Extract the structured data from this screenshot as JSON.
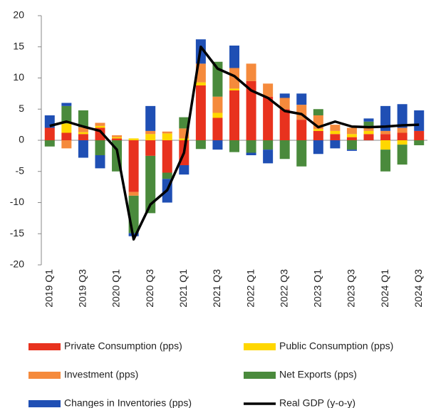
{
  "chart_data": {
    "type": "bar",
    "categories": [
      "2019 Q1",
      null,
      "2019 Q3",
      null,
      "2020 Q1",
      null,
      "2020 Q3",
      null,
      "2021 Q1",
      null,
      "2021 Q3",
      null,
      "2022 Q1",
      null,
      "2022 Q3",
      null,
      "2023 Q1",
      null,
      "2023 Q3",
      null,
      "2024 Q1",
      null,
      "2024 Q3"
    ],
    "stacked": true,
    "series": [
      {
        "name": "Private Consumption (pps)",
        "color": "#e8321e",
        "values": [
          2,
          1.2,
          1.0,
          2,
          0.3,
          -8.3,
          -2.5,
          -5.2,
          -4,
          8.8,
          3.6,
          8,
          9.5,
          7,
          5,
          3.3,
          1.5,
          1,
          0.5,
          1,
          1,
          1.2,
          1.5
        ]
      },
      {
        "name": "Public Consumption (pps)",
        "color": "#ffd700",
        "values": [
          0,
          1.5,
          0.3,
          0.3,
          0.2,
          0.3,
          1,
          1.1,
          0.3,
          0.5,
          0.8,
          0.3,
          0,
          0,
          0,
          0,
          0.3,
          0.5,
          0.5,
          0.5,
          -1.5,
          -0.7,
          0
        ]
      },
      {
        "name": "Investment (pps)",
        "color": "#f58a3c",
        "values": [
          0,
          -1.3,
          0.8,
          0.5,
          0.3,
          -0.6,
          0.5,
          0.3,
          1.6,
          3,
          2.6,
          3.3,
          2.8,
          2.1,
          1.8,
          2.4,
          2.2,
          1,
          1,
          0.5,
          0.5,
          0.8,
          0
        ]
      },
      {
        "name": "Net Exports (pps)",
        "color": "#4a8a3c",
        "values": [
          -1,
          2.8,
          2.7,
          -2.4,
          -5,
          -6,
          -9.2,
          -1,
          1.8,
          -1.4,
          5.6,
          -1.9,
          -2,
          -1.5,
          -3,
          -4.2,
          1,
          0,
          -1.5,
          1,
          -3.5,
          -3.2,
          -0.8
        ]
      },
      {
        "name": "Changes in Inventories (pps)",
        "color": "#1f4fb4",
        "values": [
          2,
          0.5,
          -2.8,
          -2.1,
          0,
          -0.5,
          4,
          -3.8,
          -1.5,
          3.9,
          -1.5,
          3.6,
          -0.4,
          -2.2,
          0.7,
          1.8,
          -2.2,
          -1.3,
          -0.2,
          0.5,
          4,
          3.8,
          3.3
        ]
      },
      {
        "name": "Real GDP (y-o-y)",
        "color": "#000000",
        "type": "line",
        "values": [
          2.3,
          3.0,
          2.2,
          1.5,
          -1.5,
          -15.9,
          -10.3,
          -8,
          -2,
          15,
          11.5,
          10.3,
          8,
          6.8,
          4.7,
          4.2,
          2.1,
          3,
          2.2,
          2.1,
          2.2,
          2.4,
          2.5
        ]
      }
    ],
    "ylim": [
      -20,
      20
    ],
    "yticks": [
      -20,
      -15,
      -10,
      -5,
      0,
      5,
      10,
      15,
      20
    ]
  }
}
